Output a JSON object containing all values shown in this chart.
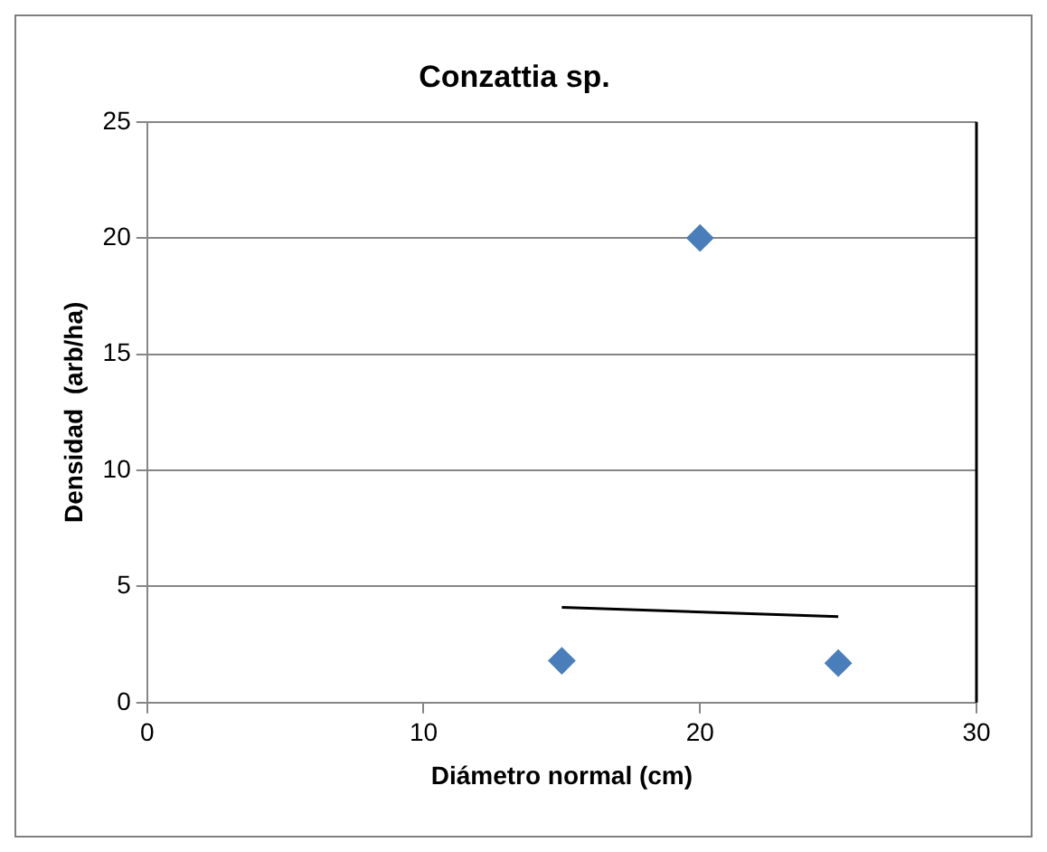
{
  "chart_data": {
    "type": "scatter",
    "title": "Conzattia sp.",
    "xlabel": "Diámetro normal (cm)",
    "ylabel": "Densidad  (arb/ha)",
    "xlim": [
      0,
      30
    ],
    "xticks": [
      0,
      10,
      20,
      30
    ],
    "ylim": [
      0,
      25
    ],
    "yticks": [
      0,
      5,
      10,
      15,
      20,
      25
    ],
    "grid": "y",
    "legend": false,
    "marker": "diamond",
    "series": [
      {
        "color": "#4a7ebb",
        "x": [
          15,
          20,
          25
        ],
        "values": [
          1.8,
          20,
          1.7
        ]
      },
      {
        "type": "line",
        "color": "#000000",
        "marker": "none",
        "x": [
          15,
          25
        ],
        "values": [
          4.1,
          3.7
        ]
      }
    ]
  }
}
